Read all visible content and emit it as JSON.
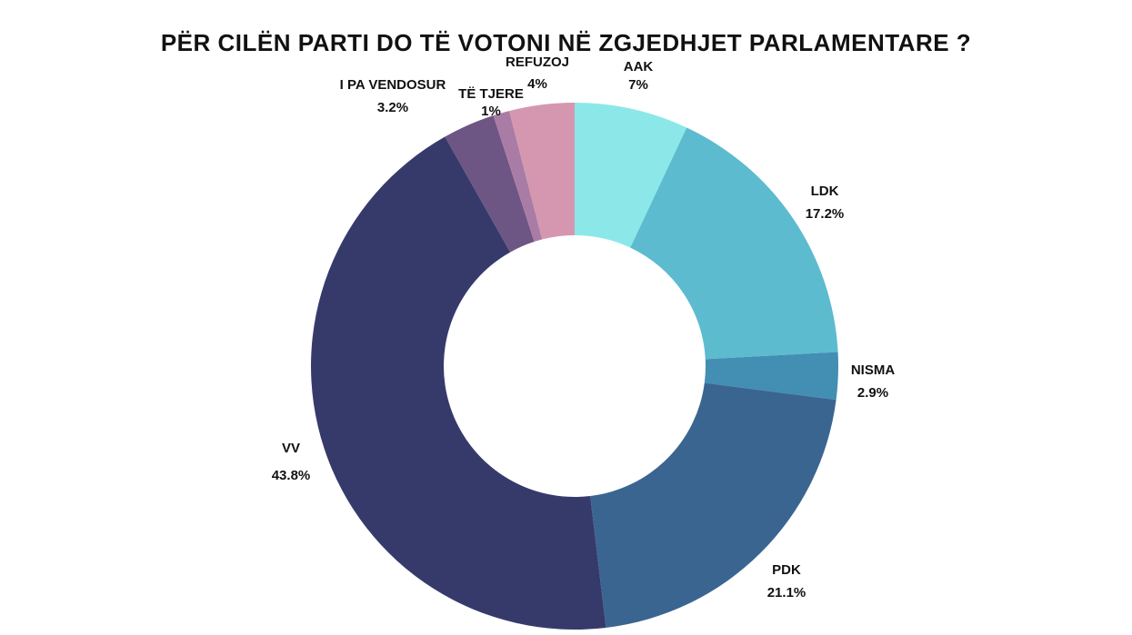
{
  "chart_data": {
    "type": "pie",
    "donut": true,
    "title": "PËR CILËN PARTI DO TË VOTONI NË ZGJEDHJET PARLAMENTARE ?",
    "start": "top",
    "direction": "clockwise",
    "slices": [
      {
        "label": "AAK",
        "value": 7,
        "value_label": "7%",
        "color": "#8ce8e8"
      },
      {
        "label": "LDK",
        "value": 17.2,
        "value_label": "17.2%",
        "color": "#5cbbcf"
      },
      {
        "label": "NISMA",
        "value": 2.9,
        "value_label": "2.9%",
        "color": "#438eb3"
      },
      {
        "label": "PDK",
        "value": 21.1,
        "value_label": "21.1%",
        "color": "#3a6591"
      },
      {
        "label": "VV",
        "value": 43.8,
        "value_label": "43.8%",
        "color": "#363a6b"
      },
      {
        "label": "I PA VENDOSUR",
        "value": 3.2,
        "value_label": "3.2%",
        "color": "#6d5584"
      },
      {
        "label": "TË TJERE",
        "value": 1,
        "value_label": "1%",
        "color": "#a97ca6"
      },
      {
        "label": "REFUZOJ",
        "value": 4,
        "value_label": "4%",
        "color": "#d597b0"
      }
    ]
  }
}
